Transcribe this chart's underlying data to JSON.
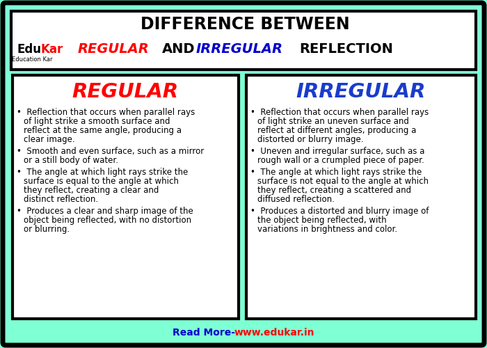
{
  "bg_color": "#7fffd4",
  "black": "#000000",
  "white": "#ffffff",
  "red": "#ff0000",
  "blue": "#0000cc",
  "title_line1": "DIFFERENCE BETWEEN",
  "left_title": "REGULAR",
  "right_title": "IRREGULAR",
  "left_title_color": "#ff0000",
  "right_title_color": "#1a3ccc",
  "left_bullets": [
    "Reflection that occurs when parallel rays of light strike a smooth surface and reflect at the same angle, producing a clear image.",
    "Smooth and even surface, such as a mirror or a still body of water.",
    "The angle at which light rays strike the surface is equal to the angle at which they reflect, creating a clear and distinct reflection.",
    "Produces a clear and sharp image of the object being reflected, with no distortion or blurring."
  ],
  "right_bullets": [
    "Reflection that occurs when parallel rays of light strike an uneven surface and reflect at different angles, producing a distorted or blurry image.",
    "Uneven and irregular surface, such as a rough wall or a crumpled piece of paper.",
    "The angle at which light rays strike the surface is not equal to the angle at which they reflect, creating a scattered and diffused reflection.",
    "Produces a distorted and blurry image of the object being reflected, with variations in brightness and color."
  ],
  "footer_text1": "Read More- ",
  "footer_text2": "www.edukar.in",
  "footer_color1": "#0000cc",
  "footer_color2": "#ff0000"
}
